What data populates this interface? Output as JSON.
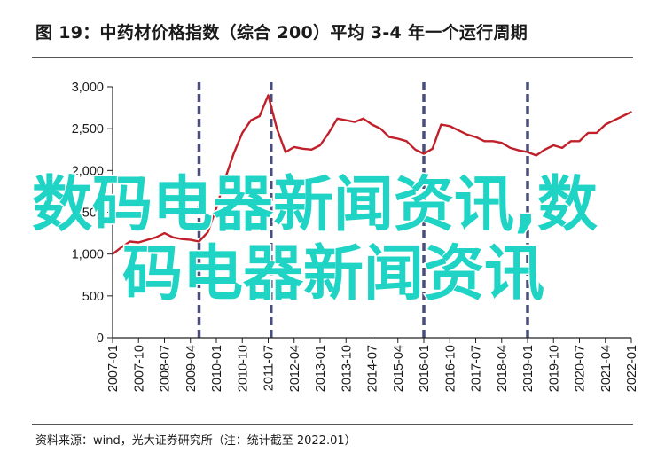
{
  "title": "图 19：中药材价格指数（综合 200）平均 3-4 年一个运行周期",
  "source": "资料来源：wind，光大证券研究所（注：统计截至 2022.01）",
  "watermark": {
    "line1": "数码电器新闻资讯,数",
    "line2": "码电器新闻资讯"
  },
  "colors": {
    "series": "#c0202a",
    "cycle_lines": "#4a4e7a",
    "axis": "#222222",
    "watermark": "#20d4c5"
  },
  "chart_data": {
    "type": "line",
    "title": "",
    "xlabel": "",
    "ylabel": "",
    "ylim": [
      0,
      3000
    ],
    "yticks": [
      0,
      500,
      1000,
      1500,
      2000,
      2500,
      3000
    ],
    "ytick_labels": [
      "0",
      "500",
      "1,000",
      "1,500",
      "2,000",
      "2,500",
      "3,000"
    ],
    "xtick_labels": [
      "2007-01",
      "2007-10",
      "2008-07",
      "2009-04",
      "2010-01",
      "2010-10",
      "2011-07",
      "2012-04",
      "2013-01",
      "2013-10",
      "2014-07",
      "2015-04",
      "2016-01",
      "2016-10",
      "2017-07",
      "2018-04",
      "2019-01",
      "2019-10",
      "2020-07",
      "2021-04",
      "2022-01"
    ],
    "xrange": [
      "2007-01",
      "2022-01"
    ],
    "grid": false,
    "legend": "none",
    "cycle_markers": [
      "2009-07",
      "2011-08",
      "2016-01",
      "2019-01"
    ],
    "series": [
      {
        "name": "",
        "x": [
          "2007-01",
          "2007-04",
          "2007-07",
          "2007-10",
          "2008-01",
          "2008-04",
          "2008-07",
          "2008-10",
          "2009-01",
          "2009-04",
          "2009-07",
          "2009-10",
          "2010-01",
          "2010-04",
          "2010-07",
          "2010-10",
          "2011-01",
          "2011-04",
          "2011-07",
          "2011-10",
          "2012-01",
          "2012-04",
          "2012-07",
          "2012-10",
          "2013-01",
          "2013-04",
          "2013-07",
          "2013-10",
          "2014-01",
          "2014-04",
          "2014-07",
          "2014-10",
          "2015-01",
          "2015-04",
          "2015-07",
          "2015-10",
          "2016-01",
          "2016-04",
          "2016-07",
          "2016-10",
          "2017-01",
          "2017-04",
          "2017-07",
          "2017-10",
          "2018-01",
          "2018-04",
          "2018-07",
          "2018-10",
          "2019-01",
          "2019-04",
          "2019-07",
          "2019-10",
          "2020-01",
          "2020-04",
          "2020-07",
          "2020-10",
          "2021-01",
          "2021-04",
          "2021-07",
          "2021-10",
          "2022-01"
        ],
        "values": [
          1000,
          1080,
          1150,
          1140,
          1170,
          1200,
          1250,
          1200,
          1180,
          1170,
          1150,
          1260,
          1550,
          1900,
          2200,
          2450,
          2600,
          2650,
          2900,
          2500,
          2220,
          2280,
          2260,
          2250,
          2300,
          2450,
          2620,
          2600,
          2580,
          2620,
          2550,
          2500,
          2400,
          2380,
          2350,
          2250,
          2200,
          2260,
          2550,
          2530,
          2480,
          2430,
          2400,
          2350,
          2350,
          2330,
          2270,
          2240,
          2220,
          2180,
          2250,
          2300,
          2270,
          2350,
          2350,
          2450,
          2450,
          2550,
          2600,
          2650,
          2700
        ]
      }
    ]
  }
}
